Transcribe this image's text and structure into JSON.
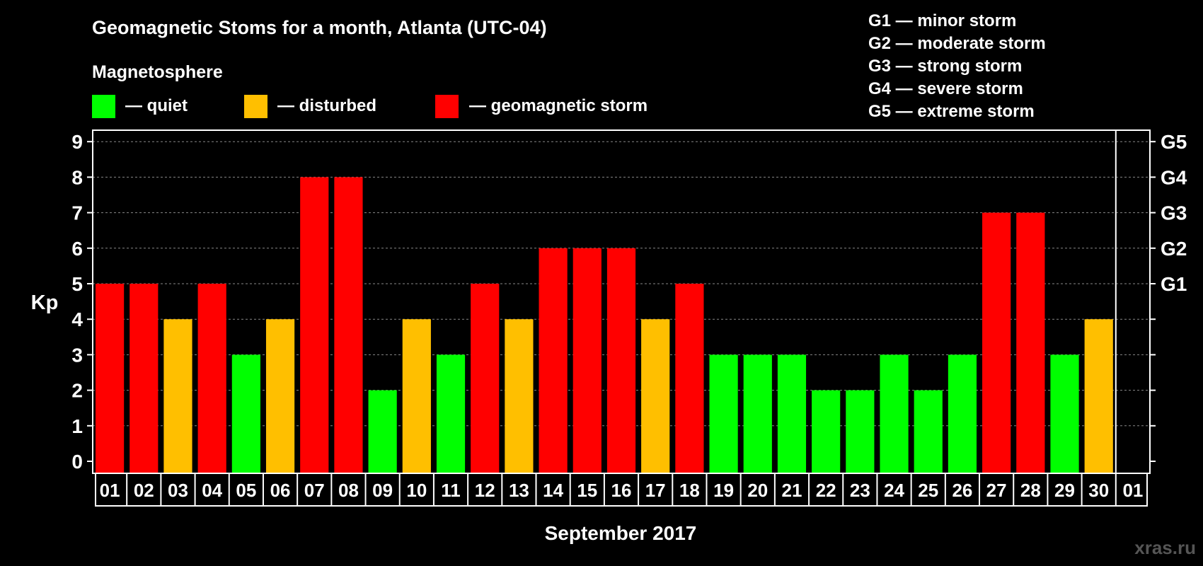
{
  "chart_data": {
    "type": "bar",
    "title": "Geomagnetic Stoms for a month, Atlanta (UTC-04)",
    "legend_title": "Magnetosphere",
    "legend": [
      {
        "label": "— quiet",
        "color": "#00ff00"
      },
      {
        "label": "— disturbed",
        "color": "#ffbf00"
      },
      {
        "label": "— geomagnetic storm",
        "color": "#ff0000"
      }
    ],
    "storm_scale": [
      "G1 — minor storm",
      "G2 — moderate storm",
      "G3 — strong storm",
      "G4 — severe storm",
      "G5 — extreme storm"
    ],
    "ylabel": "Kp",
    "xlabel": "September 2017",
    "ylim": [
      0,
      9
    ],
    "yticks": [
      "0",
      "1",
      "2",
      "3",
      "4",
      "5",
      "6",
      "7",
      "8",
      "9"
    ],
    "right_ticks": [
      {
        "value": 5,
        "label": "G1"
      },
      {
        "value": 6,
        "label": "G2"
      },
      {
        "value": 7,
        "label": "G3"
      },
      {
        "value": 8,
        "label": "G4"
      },
      {
        "value": 9,
        "label": "G5"
      }
    ],
    "categories": [
      "01",
      "02",
      "03",
      "04",
      "05",
      "06",
      "07",
      "08",
      "09",
      "10",
      "11",
      "12",
      "13",
      "14",
      "15",
      "16",
      "17",
      "18",
      "19",
      "20",
      "21",
      "22",
      "23",
      "24",
      "25",
      "26",
      "27",
      "28",
      "29",
      "30",
      "01"
    ],
    "values": [
      5,
      5,
      4,
      5,
      3,
      4,
      8,
      8,
      2,
      4,
      3,
      5,
      4,
      6,
      6,
      6,
      4,
      5,
      3,
      3,
      3,
      2,
      2,
      3,
      2,
      3,
      7,
      7,
      3,
      4,
      null
    ],
    "colors": {
      "quiet": "#00ff00",
      "disturbed": "#ffbf00",
      "storm": "#ff0000"
    },
    "grid": true
  },
  "watermark": "xras.ru"
}
